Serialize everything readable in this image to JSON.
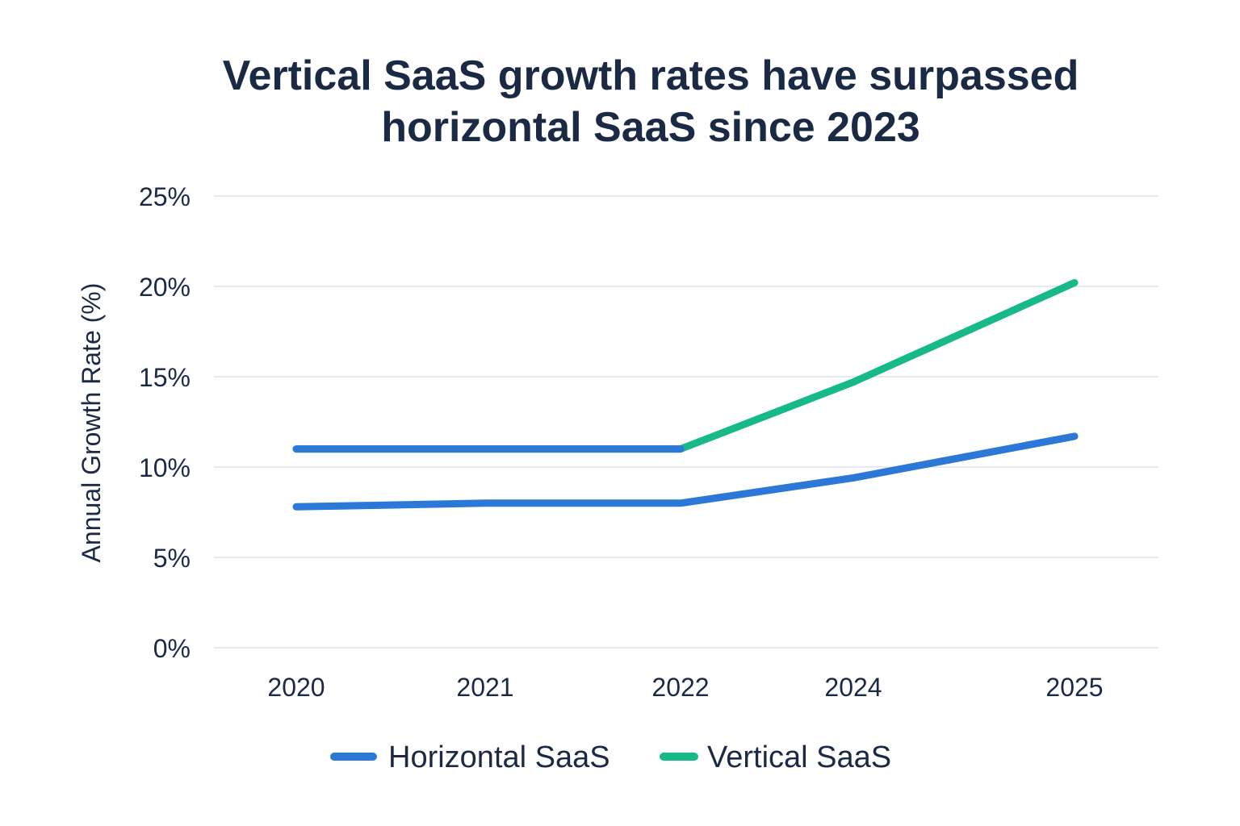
{
  "chart_data": {
    "type": "line",
    "title": "Vertical SaaS growth rates have surpassed\nhorizontal SaaS since 2023",
    "xlabel": "",
    "ylabel": "Annual Growth Rate (%)",
    "categories": [
      "2020",
      "2021",
      "2022",
      "2024",
      "2025"
    ],
    "ylim": [
      0,
      25
    ],
    "yticks": [
      0,
      5,
      10,
      15,
      20,
      25
    ],
    "ytick_labels": [
      "0%",
      "5%",
      "10%",
      "15%",
      "20%",
      "25%"
    ],
    "grid": true,
    "legend_position": "bottom-center",
    "series": [
      {
        "name": "Horizontal SaaS",
        "color": "#2b78d6",
        "values": [
          7.8,
          8.0,
          8.0,
          9.4,
          11.7
        ]
      },
      {
        "name": "Vertical SaaS",
        "color": "#17b989",
        "values": [
          11.0,
          11.0,
          11.0,
          14.7,
          20.2
        ]
      }
    ]
  }
}
